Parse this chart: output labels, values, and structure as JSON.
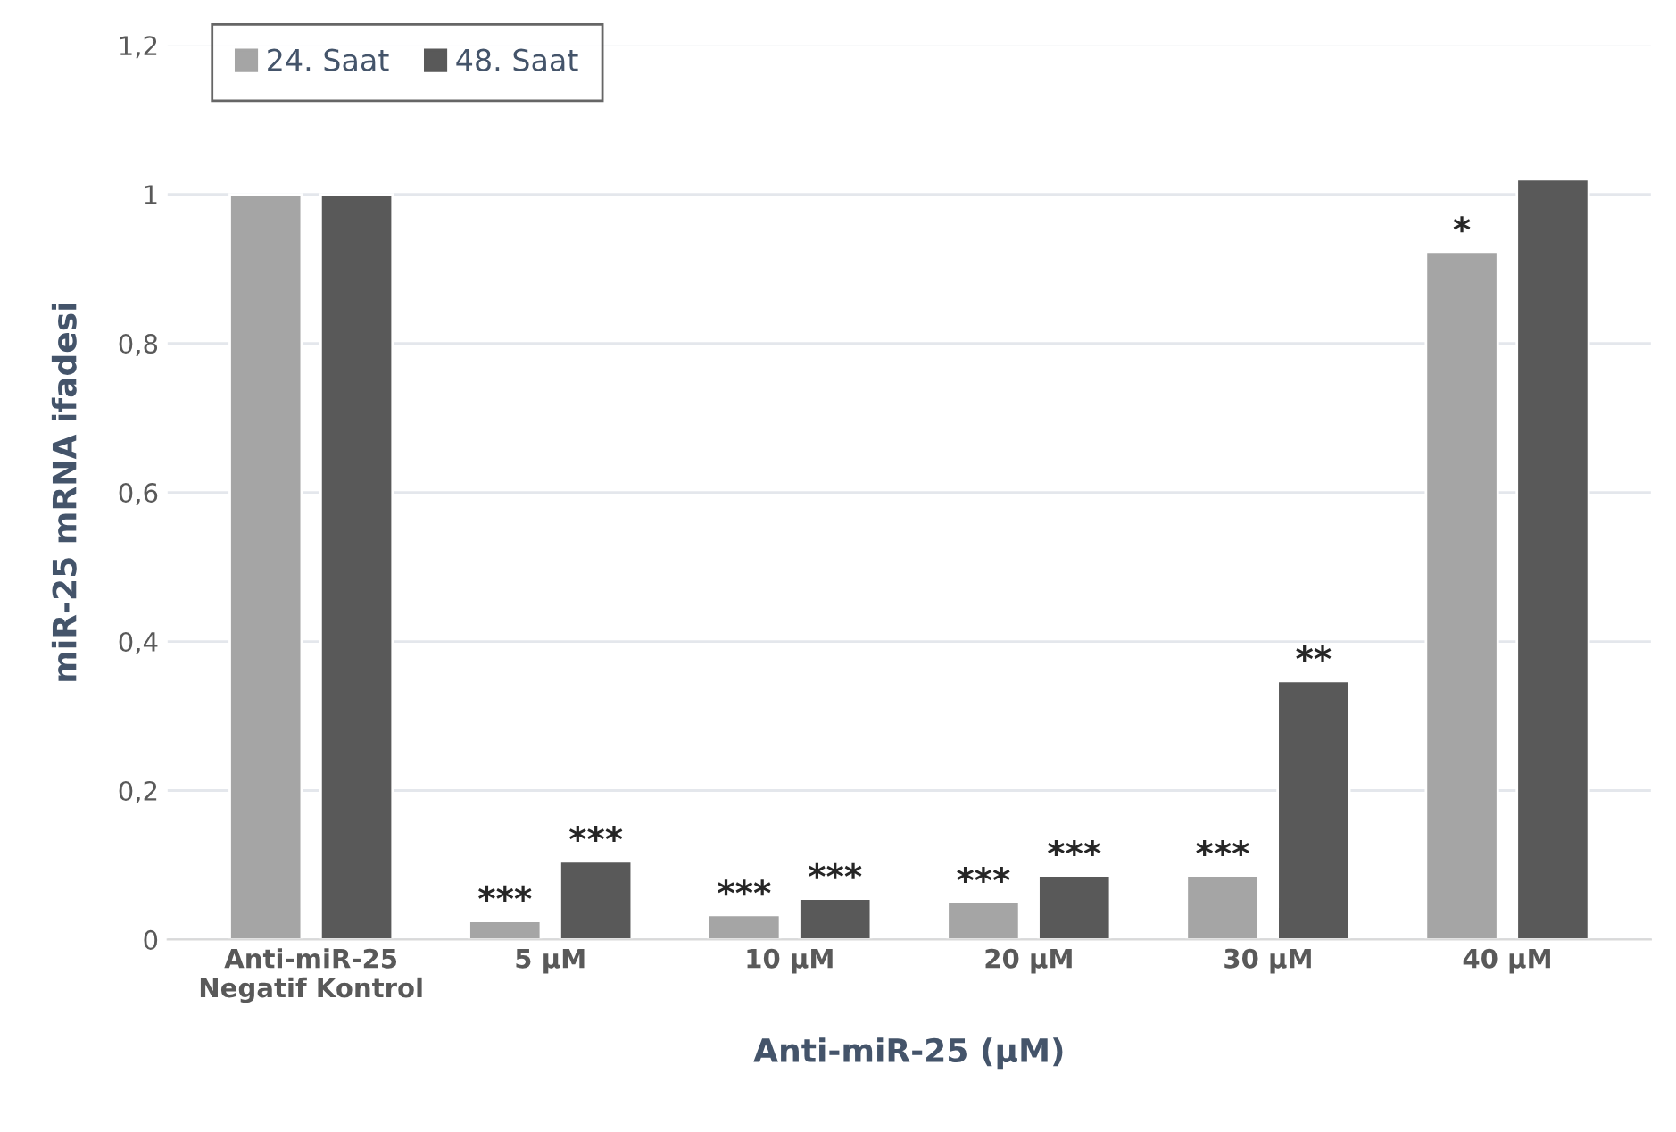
{
  "chart_data": {
    "type": "bar",
    "xlabel": "Anti-miR-25 (µM)",
    "ylabel": "miR-25 mRNA ifadesi",
    "categories": [
      "Anti-miR-25\nNegatif Kontrol",
      "5 µM",
      "10 µM",
      "20 µM",
      "30 µM",
      "40 µM"
    ],
    "series": [
      {
        "name": "24. Saat",
        "color": "#a5a5a5",
        "values": [
          1,
          0.025,
          0.033,
          0.05,
          0.086,
          0.923
        ],
        "value_labels": [
          null,
          "***",
          "***",
          "***",
          "***",
          "*"
        ]
      },
      {
        "name": "48. Saat",
        "color": "#595959",
        "values": [
          1,
          0.105,
          0.055,
          0.086,
          0.347,
          1.02
        ],
        "value_labels": [
          null,
          "***",
          "***",
          "***",
          "**",
          null
        ]
      }
    ],
    "ylim": [
      0,
      1.2
    ],
    "yticks": [
      0,
      {
        "value": 0.2,
        "label": "0,2"
      },
      {
        "value": 0.4,
        "label": "0,4"
      },
      {
        "value": 0.6,
        "label": "0,6"
      },
      {
        "value": 0.8,
        "label": "0,8"
      },
      1,
      {
        "value": 1.2,
        "label": "1,2"
      }
    ],
    "grid": "y",
    "legend": "top left"
  }
}
